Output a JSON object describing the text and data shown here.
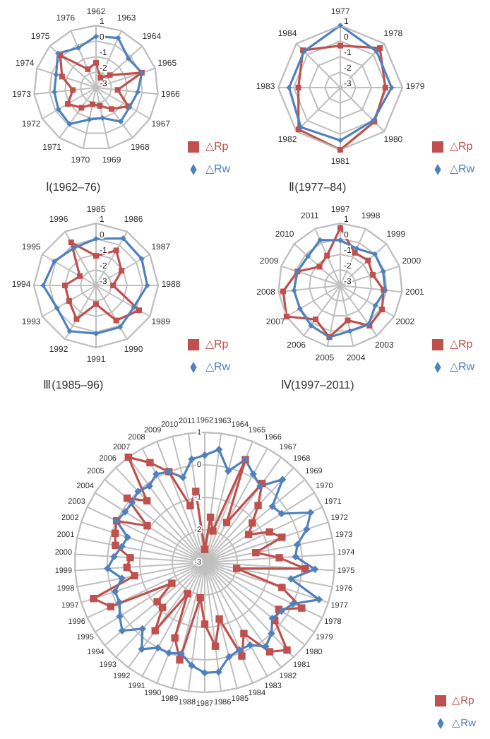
{
  "chart_data": [
    {
      "type": "radar",
      "title": "Ⅰ(1962–76)",
      "categories": [
        "1962",
        "1963",
        "1964",
        "1965",
        "1966",
        "1967",
        "1968",
        "1969",
        "1970",
        "1971",
        "1972",
        "1973",
        "1974",
        "1975",
        "1976"
      ],
      "ylim": [
        -3,
        1
      ],
      "yticks": [
        -3,
        -2,
        -1,
        0,
        1
      ],
      "grid": true,
      "legend": "bottom right",
      "series": [
        {
          "name": "△Rp",
          "color": "#c0504d",
          "marker": "square",
          "values": [
            -1.4,
            -2.3,
            -1.8,
            0.1,
            -1.6,
            -0.6,
            -1.3,
            -1.8,
            -1.9,
            -1.4,
            -0.9,
            -1.5,
            -0.7,
            0.1,
            -1.7
          ]
        },
        {
          "name": "△Rw",
          "color": "#4f81bd",
          "marker": "diamond",
          "values": [
            0.3,
            0.5,
            -0.2,
            0.1,
            -0.3,
            -0.5,
            -0.3,
            -1.0,
            -0.9,
            -0.1,
            -0.2,
            -0.3,
            -0.3,
            0.3,
            -0.2
          ]
        }
      ]
    },
    {
      "type": "radar",
      "title": "Ⅱ(1977–84)",
      "categories": [
        "1977",
        "1978",
        "1979",
        "1980",
        "1981",
        "1982",
        "1983",
        "1984"
      ],
      "ylim": [
        -3,
        1
      ],
      "yticks": [
        -3,
        -2,
        -1,
        0,
        1
      ],
      "grid": true,
      "legend": "bottom right",
      "series": [
        {
          "name": "△Rp",
          "color": "#c0504d",
          "marker": "square",
          "values": [
            -0.3,
            0.6,
            -0.1,
            0.1,
            1.0,
            0.8,
            -0.3,
            0.4
          ]
        },
        {
          "name": "△Rw",
          "color": "#4f81bd",
          "marker": "diamond",
          "values": [
            1.0,
            0.3,
            0.3,
            0.0,
            0.4,
            0.6,
            0.3,
            0.3
          ]
        }
      ]
    },
    {
      "type": "radar",
      "title": "Ⅲ(1985–96)",
      "categories": [
        "1985",
        "1986",
        "1987",
        "1988",
        "1989",
        "1990",
        "1991",
        "1992",
        "1993",
        "1994",
        "1995",
        "1996"
      ],
      "ylim": [
        -3,
        1
      ],
      "yticks": [
        -3,
        -2,
        -1,
        0,
        1
      ],
      "grid": true,
      "legend": "bottom right",
      "series": [
        {
          "name": "△Rp",
          "color": "#c0504d",
          "marker": "square",
          "values": [
            -1.1,
            -0.4,
            -1.1,
            -1.9,
            0.2,
            -0.4,
            -1.8,
            -0.5,
            -1.0,
            -1.0,
            -1.8,
            0.2
          ]
        },
        {
          "name": "△Rw",
          "color": "#4f81bd",
          "marker": "diamond",
          "values": [
            0.0,
            0.5,
            0.4,
            0.3,
            -0.2,
            0.1,
            0.1,
            0.4,
            -0.1,
            0.4,
            0.1,
            -0.2
          ]
        }
      ]
    },
    {
      "type": "radar",
      "title": "Ⅳ(1997–2011)",
      "categories": [
        "1997",
        "1998",
        "1999",
        "2000",
        "2001",
        "2002",
        "2003",
        "2004",
        "2005",
        "2006",
        "2007",
        "2008",
        "2009",
        "2010",
        "2011"
      ],
      "ylim": [
        -3,
        1
      ],
      "yticks": [
        -3,
        -2,
        -1,
        0,
        1
      ],
      "grid": true,
      "legend": "bottom right",
      "series": [
        {
          "name": "△Rp",
          "color": "#c0504d",
          "marker": "square",
          "values": [
            0.7,
            -0.7,
            -0.6,
            -0.8,
            -0.2,
            0.1,
            0.2,
            -0.7,
            0.4,
            -0.3,
            1.0,
            0.7,
            -0.1,
            -1.2,
            -0.9
          ]
        },
        {
          "name": "△Rw",
          "color": "#4f81bd",
          "marker": "diamond",
          "values": [
            -0.1,
            -0.4,
            0.0,
            -0.1,
            -0.1,
            -0.4,
            0.1,
            0.0,
            0.4,
            0.2,
            0.0,
            0.0,
            -0.1,
            -0.2,
            0.2
          ]
        }
      ]
    },
    {
      "type": "radar",
      "categories": [
        "1962",
        "1963",
        "1964",
        "1965",
        "1966",
        "1967",
        "1968",
        "1969",
        "1970",
        "1971",
        "1972",
        "1973",
        "1974",
        "1975",
        "1976",
        "1977",
        "1978",
        "1979",
        "1980",
        "1981",
        "1982",
        "1983",
        "1984",
        "1985",
        "1986",
        "1987",
        "1988",
        "1989",
        "1990",
        "1991",
        "1992",
        "1993",
        "1994",
        "1995",
        "1996",
        "1997",
        "1998",
        "1999",
        "2000",
        "2001",
        "2002",
        "2003",
        "2004",
        "2005",
        "2006",
        "2007",
        "2008",
        "2009",
        "2010",
        "2011"
      ],
      "ylim": [
        -3,
        1
      ],
      "yticks": [
        -3,
        -2,
        -1,
        0,
        1
      ],
      "grid": true,
      "legend": "bottom right",
      "series": [
        {
          "name": "△Rp",
          "color": "#c0504d",
          "marker": "square",
          "values": [
            -2.6,
            -1.6,
            -2.0,
            0.4,
            -1.6,
            0.0,
            -0.6,
            -1.1,
            -1.4,
            -0.8,
            -0.5,
            -1.4,
            -0.7,
            0.1,
            -2.0,
            -0.5,
            0.3,
            -0.3,
            -0.2,
            0.7,
            0.4,
            -0.5,
            0.1,
            -1.2,
            -0.4,
            -1.1,
            -1.9,
            0.1,
            -0.5,
            -1.9,
            -0.4,
            -1.1,
            -1.1,
            -1.8,
            0.2,
            0.6,
            -0.8,
            -0.6,
            -0.7,
            -0.2,
            -0.1,
            0.0,
            -0.9,
            0.1,
            -0.4,
            1.0,
            0.5,
            0.0,
            -1.2,
            -0.8
          ]
        },
        {
          "name": "△Rw",
          "color": "#4f81bd",
          "marker": "diamond",
          "values": [
            0.3,
            0.5,
            -0.1,
            0.4,
            0.1,
            -0.1,
            0.5,
            -0.3,
            -0.2,
            0.6,
            0.3,
            -0.1,
            -0.2,
            0.4,
            -0.3,
            0.7,
            0.0,
            -0.2,
            -0.3,
            0.0,
            0.2,
            -0.1,
            -0.1,
            0.0,
            0.4,
            0.4,
            0.2,
            -0.1,
            0.0,
            0.0,
            0.3,
            -0.2,
            0.3,
            0.1,
            -0.1,
            -0.1,
            -0.4,
            0.0,
            -0.2,
            -0.4,
            -0.5,
            0.0,
            -0.1,
            -0.1,
            0.0,
            -0.1,
            0.1,
            0.0,
            -0.3,
            0.2
          ]
        }
      ]
    }
  ]
}
